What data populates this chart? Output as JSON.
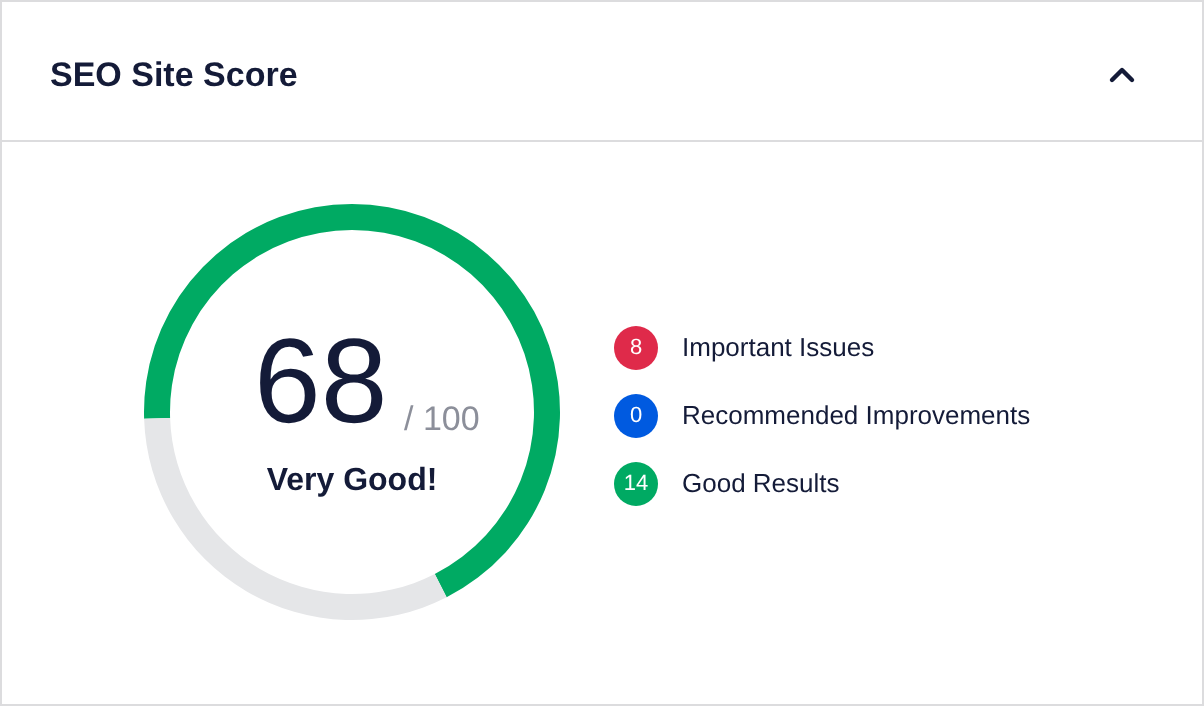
{
  "chart_data": {
    "type": "donut",
    "title": "SEO Site Score",
    "categories": [
      null,
      null
    ],
    "values": [
      68,
      32
    ],
    "colors": [
      "#00aa63",
      "#e5e6e8"
    ],
    "annotations": [
      "68",
      "/ 100",
      "Very Good!",
      "8",
      "Important Issues",
      "0",
      "Recommended Improvements",
      "14",
      "Good Results"
    ]
  }
}
